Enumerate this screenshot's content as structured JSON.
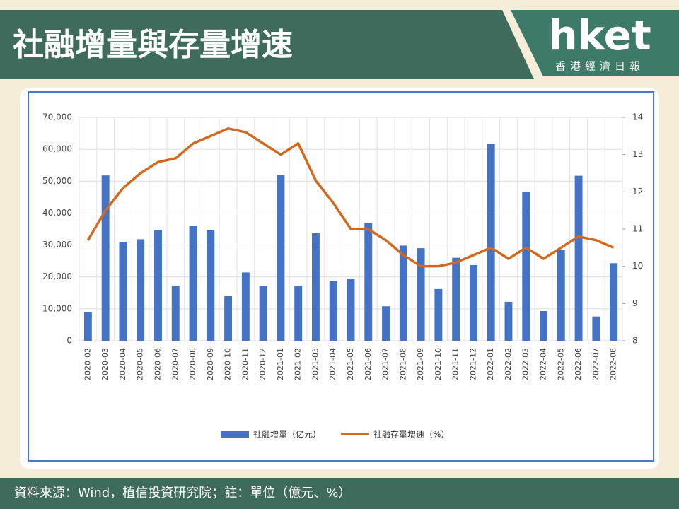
{
  "header": {
    "title": "社融增量與存量增速",
    "logo": "hket",
    "logo_subtitle": "香港經濟日報"
  },
  "footer": {
    "source": "資料來源：Wind，植信投資研究院；註：單位（億元、%）"
  },
  "chart_data": {
    "type": "bar_line",
    "categories": [
      "2020-02",
      "2020-03",
      "2020-04",
      "2020-05",
      "2020-06",
      "2020-07",
      "2020-08",
      "2020-09",
      "2020-10",
      "2020-11",
      "2020-12",
      "2021-01",
      "2021-02",
      "2021-03",
      "2021-04",
      "2021-05",
      "2021-06",
      "2021-07",
      "2021-08",
      "2021-09",
      "2021-10",
      "2021-11",
      "2021-12",
      "2022-01",
      "2022-02",
      "2022-03",
      "2022-04",
      "2022-05",
      "2022-06",
      "2022-07",
      "2022-08"
    ],
    "series": [
      {
        "name": "社融增量（亿元）",
        "color": "#4472c4",
        "type": "bar",
        "axis": "y",
        "values": [
          9000,
          51800,
          31000,
          31800,
          34600,
          17200,
          35900,
          34700,
          14000,
          21400,
          17200,
          52000,
          17200,
          33700,
          18700,
          19500,
          36900,
          10800,
          29800,
          29000,
          16200,
          26000,
          23700,
          61700,
          12200,
          46600,
          9300,
          28400,
          51700,
          7600,
          24300
        ]
      },
      {
        "name": "社融存量增速（%）",
        "color": "#d2691e",
        "type": "line",
        "axis": "y2",
        "values": [
          10.7,
          11.5,
          12.1,
          12.5,
          12.8,
          12.9,
          13.3,
          13.5,
          13.7,
          13.6,
          13.3,
          13.0,
          13.3,
          12.3,
          11.7,
          11.0,
          11.0,
          10.7,
          10.3,
          10.0,
          10.0,
          10.1,
          10.3,
          10.5,
          10.2,
          10.5,
          10.2,
          10.5,
          10.8,
          10.7,
          10.5
        ]
      }
    ],
    "ylim": [
      0,
      70000
    ],
    "yticks": [
      0,
      {
        "value": 10000,
        "label": "10,000"
      },
      {
        "value": 20000,
        "label": "20,000"
      },
      {
        "value": 30000,
        "label": "30,000"
      },
      {
        "value": 40000,
        "label": "40,000"
      },
      {
        "value": 50000,
        "label": "50,000"
      },
      {
        "value": 60000,
        "label": "60,000"
      },
      {
        "value": 70000,
        "label": "70,000"
      }
    ],
    "y2lim": [
      8,
      14
    ],
    "y2ticks": [
      8,
      9,
      10,
      11,
      12,
      13,
      14
    ],
    "grid": true
  }
}
